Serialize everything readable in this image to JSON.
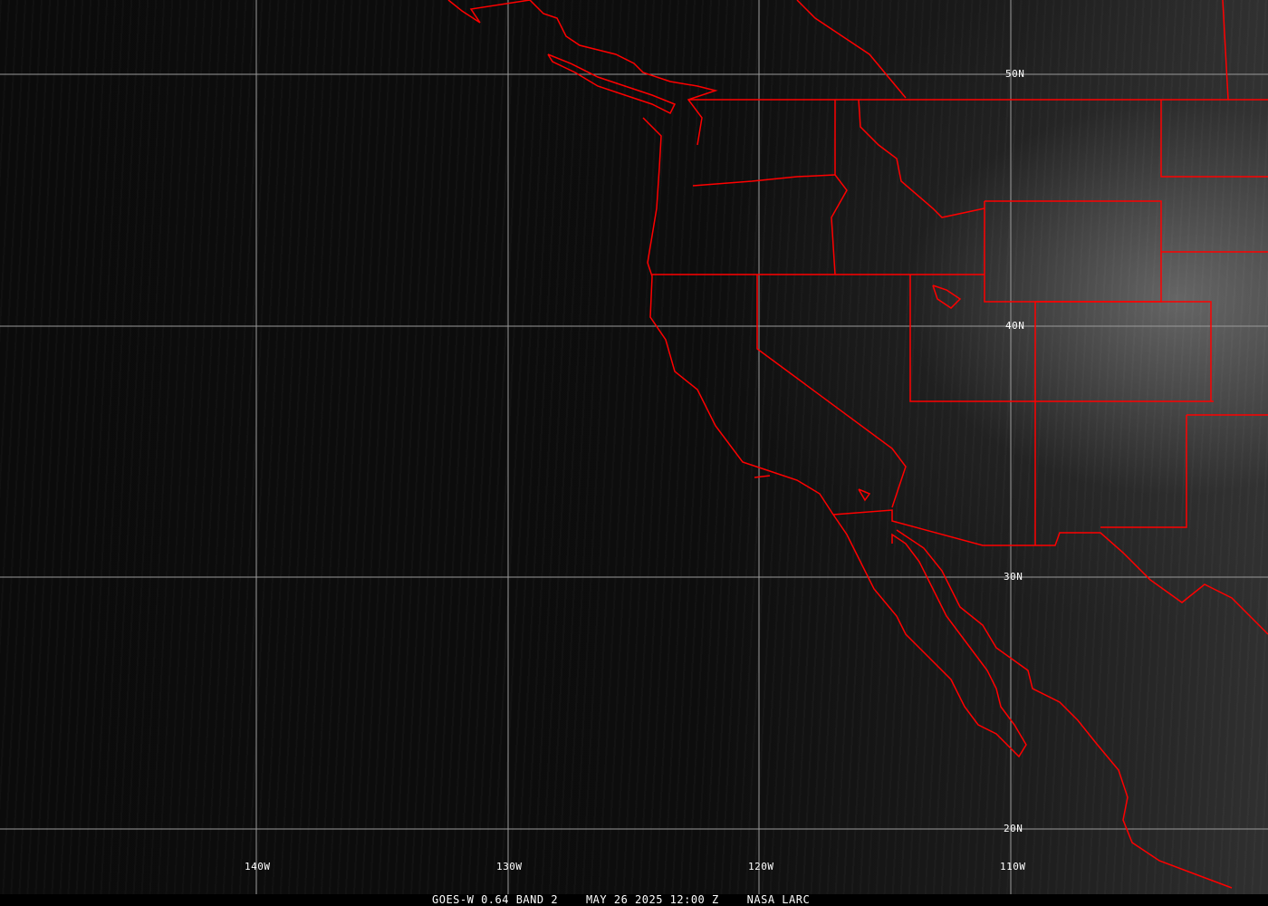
{
  "caption": {
    "satellite": "GOES-W 0.64 BAND 2",
    "datetime": "MAY 26 2025 12:00 Z",
    "source": "NASA LARC"
  },
  "lon_labels": [
    "140W",
    "130W",
    "120W",
    "110W"
  ],
  "lat_labels": [
    "50N",
    "40N",
    "30N",
    "20N"
  ],
  "colors": {
    "boundaries": "#ff0000",
    "grid": "#9a9a9a",
    "background": "#000000"
  },
  "layers": [
    "visible satellite imagery",
    "coastlines",
    "state and national boundaries",
    "lat/lon grid"
  ]
}
